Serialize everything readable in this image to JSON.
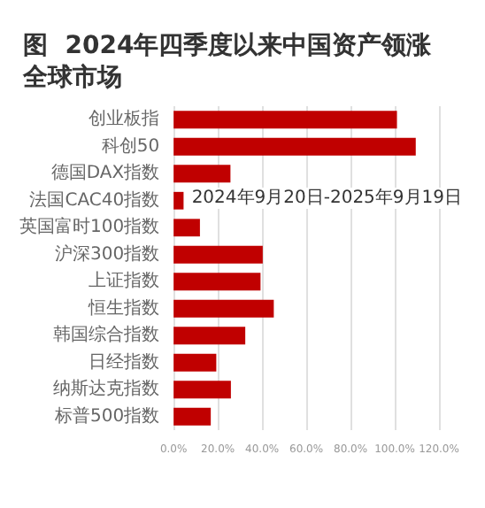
{
  "chart_data": {
    "type": "bar",
    "orientation": "horizontal",
    "title": "图  2024年四季度以来中国资产领涨全球市场",
    "categories": [
      "创业板指",
      "科创50",
      "德国DAX指数",
      "法国CAC40指数",
      "英国富时100指数",
      "沪深300指数",
      "上证指数",
      "恒生指数",
      "韩国综合指数",
      "日经指数",
      "纳斯达克指数",
      "标普500指数"
    ],
    "series": [
      {
        "color": "#c00000",
        "values": [
          101,
          109.5,
          25.7,
          4.5,
          11.9,
          40.3,
          39.3,
          45.3,
          32.4,
          19.3,
          25.9,
          16.8
        ]
      }
    ],
    "xlim": [
      0,
      120
    ],
    "xticks": [
      {
        "value": 0,
        "label": "0.0%"
      },
      {
        "value": 20,
        "label": "20.0%"
      },
      {
        "value": 40,
        "label": "40.0%"
      },
      {
        "value": 60,
        "label": "60.0%"
      },
      {
        "value": 80,
        "label": "80.0%"
      },
      {
        "value": 100,
        "label": "100.0%"
      },
      {
        "value": 120,
        "label": "120.0%"
      }
    ],
    "grid": "x",
    "annotations": [
      "2024年9月20日-2025年9月19日"
    ]
  }
}
